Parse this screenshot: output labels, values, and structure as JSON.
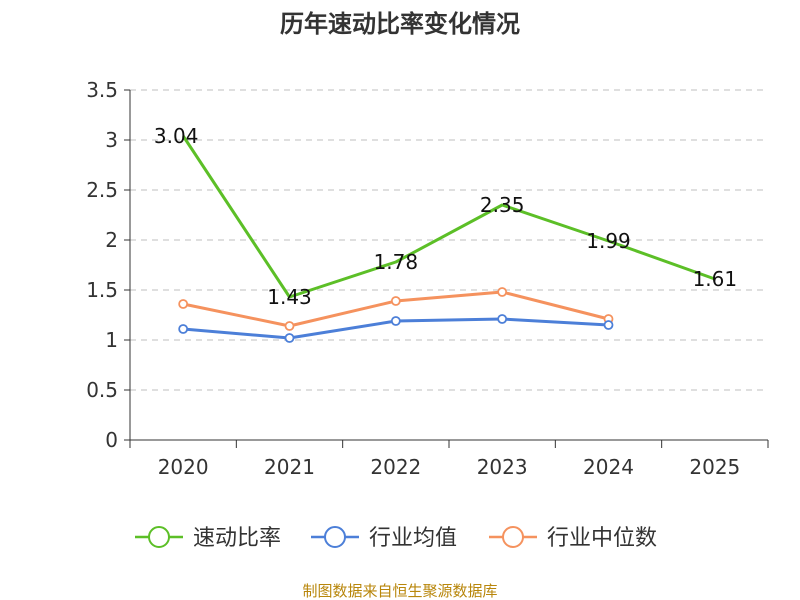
{
  "chart_data": {
    "type": "line",
    "title": "历年速动比率变化情况",
    "categories": [
      "2020",
      "2021",
      "2022",
      "2023",
      "2024",
      "2025"
    ],
    "ylim": [
      0,
      3.5
    ],
    "yticks": [
      "0",
      "0.5",
      "1",
      "1.5",
      "2",
      "2.5",
      "3",
      "3.5"
    ],
    "grid": true,
    "legend_position": "bottom",
    "series": [
      {
        "name": "速动比率",
        "color": "#5cbf27",
        "values": [
          3.04,
          1.43,
          1.78,
          2.35,
          1.99,
          1.61
        ],
        "labels": [
          "3.04",
          "1.43",
          "1.78",
          "2.35",
          "1.99",
          "1.61"
        ],
        "markers": false
      },
      {
        "name": "行业均值",
        "color": "#4c7fd8",
        "values": [
          1.11,
          1.02,
          1.19,
          1.21,
          1.15,
          null
        ],
        "markers": true
      },
      {
        "name": "行业中位数",
        "color": "#f5925e",
        "values": [
          1.36,
          1.14,
          1.39,
          1.48,
          1.21,
          null
        ],
        "markers": true
      }
    ],
    "source": "制图数据来自恒生聚源数据库"
  }
}
